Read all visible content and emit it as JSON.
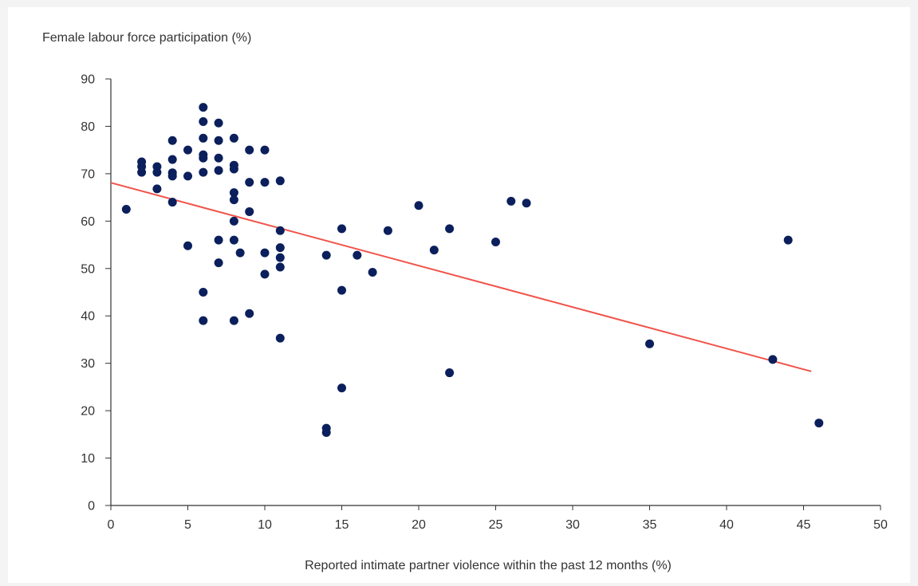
{
  "chart_data": {
    "type": "scatter",
    "ylabel": "Female labour force participation (%)",
    "xlabel": "Reported intimate partner violence within the past 12 months (%)",
    "xlim": [
      0,
      50
    ],
    "ylim": [
      0,
      90
    ],
    "x_ticks": [
      "0",
      "5",
      "10",
      "15",
      "20",
      "25",
      "30",
      "35",
      "40",
      "45",
      "50"
    ],
    "y_ticks": [
      "0",
      "10",
      "20",
      "30",
      "40",
      "50",
      "60",
      "70",
      "80",
      "90"
    ],
    "grid": false,
    "series": [
      {
        "points": [
          [
            1,
            62.5
          ],
          [
            2,
            72.5
          ],
          [
            2,
            71.5
          ],
          [
            2,
            70.3
          ],
          [
            3,
            71.5
          ],
          [
            3,
            70.3
          ],
          [
            3,
            66.8
          ],
          [
            4,
            77
          ],
          [
            4,
            73
          ],
          [
            4,
            70.2
          ],
          [
            4,
            69.5
          ],
          [
            4,
            64
          ],
          [
            5,
            75
          ],
          [
            5,
            69.5
          ],
          [
            5,
            54.8
          ],
          [
            6,
            84
          ],
          [
            6,
            81
          ],
          [
            6,
            77.5
          ],
          [
            6,
            74
          ],
          [
            6,
            73.3
          ],
          [
            6,
            70.3
          ],
          [
            6,
            45
          ],
          [
            6,
            39
          ],
          [
            7,
            80.7
          ],
          [
            7,
            77
          ],
          [
            7,
            73.3
          ],
          [
            7,
            70.7
          ],
          [
            7,
            56
          ],
          [
            7,
            51.2
          ],
          [
            8,
            77.5
          ],
          [
            8,
            71.8
          ],
          [
            8,
            71
          ],
          [
            8,
            66
          ],
          [
            8,
            64.5
          ],
          [
            8,
            60
          ],
          [
            8,
            56
          ],
          [
            8,
            39
          ],
          [
            8.4,
            53.3
          ],
          [
            9,
            75
          ],
          [
            9,
            68.2
          ],
          [
            9,
            62
          ],
          [
            9,
            40.5
          ],
          [
            10,
            75
          ],
          [
            10,
            68.2
          ],
          [
            10,
            53.3
          ],
          [
            10,
            48.8
          ],
          [
            11,
            68.5
          ],
          [
            11,
            58
          ],
          [
            11,
            54.4
          ],
          [
            11,
            52.3
          ],
          [
            11,
            50.3
          ],
          [
            11,
            35.3
          ],
          [
            14,
            52.8
          ],
          [
            14,
            16.3
          ],
          [
            14,
            15.4
          ],
          [
            15,
            58.4
          ],
          [
            15,
            45.4
          ],
          [
            15,
            24.8
          ],
          [
            16,
            52.8
          ],
          [
            17,
            49.2
          ],
          [
            18,
            58
          ],
          [
            20,
            63.3
          ],
          [
            21,
            53.9
          ],
          [
            22,
            58.4
          ],
          [
            22,
            28
          ],
          [
            25,
            55.6
          ],
          [
            26,
            64.2
          ],
          [
            27,
            63.8
          ],
          [
            35,
            34.1
          ],
          [
            43,
            30.8
          ],
          [
            44,
            56
          ],
          [
            46,
            17.4
          ]
        ],
        "color": "#0b1f5c"
      }
    ],
    "trendline": {
      "x": [
        0,
        45.5
      ],
      "y": [
        68.1,
        28.3
      ],
      "color": "#f0534a"
    }
  }
}
